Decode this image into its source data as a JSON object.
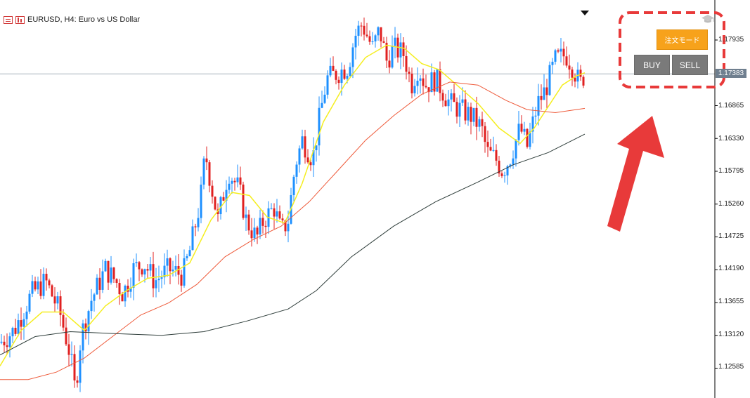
{
  "title": {
    "symbol_line": "EURUSD, H4:  Euro vs US Dollar"
  },
  "panel": {
    "order_mode_label": "注文モード",
    "buy_label": "BUY",
    "sell_label": "SELL"
  },
  "colors": {
    "bull_candle": "#1e90ff",
    "bear_candle": "#e02020",
    "ma_fast": "#f5ee20",
    "ma_mid": "#ee5a3a",
    "ma_slow": "#2e3d3a",
    "highlight": "#e83a3a",
    "order_mode_button": "#f7a21b",
    "trade_button": "#7a7a7a"
  },
  "price_axis": {
    "labels": [
      "1.17935",
      "1.16865",
      "1.16330",
      "1.15795",
      "1.15260",
      "1.14725",
      "1.14190",
      "1.13655",
      "1.13120",
      "1.12585"
    ],
    "current_price": "1.17383"
  },
  "chart_data": {
    "type": "candlestick",
    "symbol": "EURUSD",
    "timeframe": "H4",
    "ylim": [
      1.1218,
      1.1842
    ],
    "current_price": 1.17383,
    "close_path": [
      [
        0,
        1.13
      ],
      [
        20,
        1.132
      ],
      [
        45,
        1.138
      ],
      [
        65,
        1.14
      ],
      [
        85,
        1.135
      ],
      [
        100,
        1.128
      ],
      [
        107,
        1.122
      ],
      [
        115,
        1.131
      ],
      [
        130,
        1.137
      ],
      [
        150,
        1.142
      ],
      [
        165,
        1.14
      ],
      [
        175,
        1.138
      ],
      [
        190,
        1.142
      ],
      [
        205,
        1.143
      ],
      [
        220,
        1.14
      ],
      [
        240,
        1.142
      ],
      [
        260,
        1.141
      ],
      [
        270,
        1.145
      ],
      [
        285,
        1.153
      ],
      [
        292,
        1.161
      ],
      [
        300,
        1.156
      ],
      [
        310,
        1.15
      ],
      [
        325,
        1.158
      ],
      [
        340,
        1.155
      ],
      [
        350,
        1.15
      ],
      [
        365,
        1.147
      ],
      [
        375,
        1.15
      ],
      [
        390,
        1.152
      ],
      [
        400,
        1.148
      ],
      [
        410,
        1.15
      ],
      [
        420,
        1.159
      ],
      [
        430,
        1.163
      ],
      [
        445,
        1.16
      ],
      [
        455,
        1.167
      ],
      [
        465,
        1.173
      ],
      [
        480,
        1.174
      ],
      [
        495,
        1.175
      ],
      [
        505,
        1.18
      ],
      [
        515,
        1.182
      ],
      [
        530,
        1.178
      ],
      [
        540,
        1.181
      ],
      [
        550,
        1.176
      ],
      [
        560,
        1.178
      ],
      [
        575,
        1.177
      ],
      [
        585,
        1.172
      ],
      [
        595,
        1.175
      ],
      [
        605,
        1.172
      ],
      [
        620,
        1.173
      ],
      [
        630,
        1.171
      ],
      [
        640,
        1.169
      ],
      [
        655,
        1.168
      ],
      [
        670,
        1.167
      ],
      [
        685,
        1.165
      ],
      [
        693,
        1.161
      ],
      [
        705,
        1.16
      ],
      [
        715,
        1.158
      ],
      [
        725,
        1.16
      ],
      [
        740,
        1.165
      ],
      [
        750,
        1.162
      ],
      [
        765,
        1.169
      ],
      [
        775,
        1.171
      ],
      [
        790,
        1.176
      ],
      [
        805,
        1.177
      ],
      [
        815,
        1.175
      ],
      [
        825,
        1.172
      ],
      [
        832,
        1.174
      ]
    ],
    "series": [
      {
        "values": [
          [
            0,
            1.1262
          ],
          [
            30,
            1.132
          ],
          [
            60,
            1.135
          ],
          [
            90,
            1.135
          ],
          [
            120,
            1.132
          ],
          [
            150,
            1.136
          ],
          [
            180,
            1.1385
          ],
          [
            210,
            1.1405
          ],
          [
            240,
            1.141
          ],
          [
            270,
            1.143
          ],
          [
            300,
            1.15
          ],
          [
            330,
            1.1545
          ],
          [
            355,
            1.154
          ],
          [
            380,
            1.1505
          ],
          [
            405,
            1.1495
          ],
          [
            430,
            1.156
          ],
          [
            460,
            1.166
          ],
          [
            490,
            1.172
          ],
          [
            520,
            1.1765
          ],
          [
            550,
            1.1785
          ],
          [
            575,
            1.178
          ],
          [
            600,
            1.1755
          ],
          [
            625,
            1.1745
          ],
          [
            650,
            1.172
          ],
          [
            680,
            1.169
          ],
          [
            710,
            1.165
          ],
          [
            740,
            1.1625
          ],
          [
            760,
            1.165
          ],
          [
            780,
            1.1685
          ],
          [
            800,
            1.172
          ],
          [
            820,
            1.1735
          ],
          [
            832,
            1.174
          ]
        ]
      },
      {
        "values": [
          [
            0,
            1.124
          ],
          [
            40,
            1.124
          ],
          [
            80,
            1.1252
          ],
          [
            120,
            1.1275
          ],
          [
            160,
            1.131
          ],
          [
            200,
            1.1345
          ],
          [
            240,
            1.1365
          ],
          [
            280,
            1.1395
          ],
          [
            320,
            1.144
          ],
          [
            360,
            1.1468
          ],
          [
            400,
            1.149
          ],
          [
            440,
            1.153
          ],
          [
            480,
            1.158
          ],
          [
            520,
            1.163
          ],
          [
            560,
            1.167
          ],
          [
            600,
            1.1705
          ],
          [
            640,
            1.1725
          ],
          [
            680,
            1.172
          ],
          [
            720,
            1.1695
          ],
          [
            750,
            1.168
          ],
          [
            790,
            1.1675
          ],
          [
            832,
            1.1682
          ]
        ]
      },
      {
        "values": [
          [
            0,
            1.128
          ],
          [
            50,
            1.131
          ],
          [
            100,
            1.1318
          ],
          [
            160,
            1.1315
          ],
          [
            230,
            1.1312
          ],
          [
            290,
            1.1318
          ],
          [
            350,
            1.1335
          ],
          [
            410,
            1.1355
          ],
          [
            450,
            1.1385
          ],
          [
            500,
            1.144
          ],
          [
            560,
            1.149
          ],
          [
            620,
            1.153
          ],
          [
            680,
            1.1562
          ],
          [
            730,
            1.159
          ],
          [
            780,
            1.161
          ],
          [
            832,
            1.164
          ]
        ]
      }
    ]
  }
}
